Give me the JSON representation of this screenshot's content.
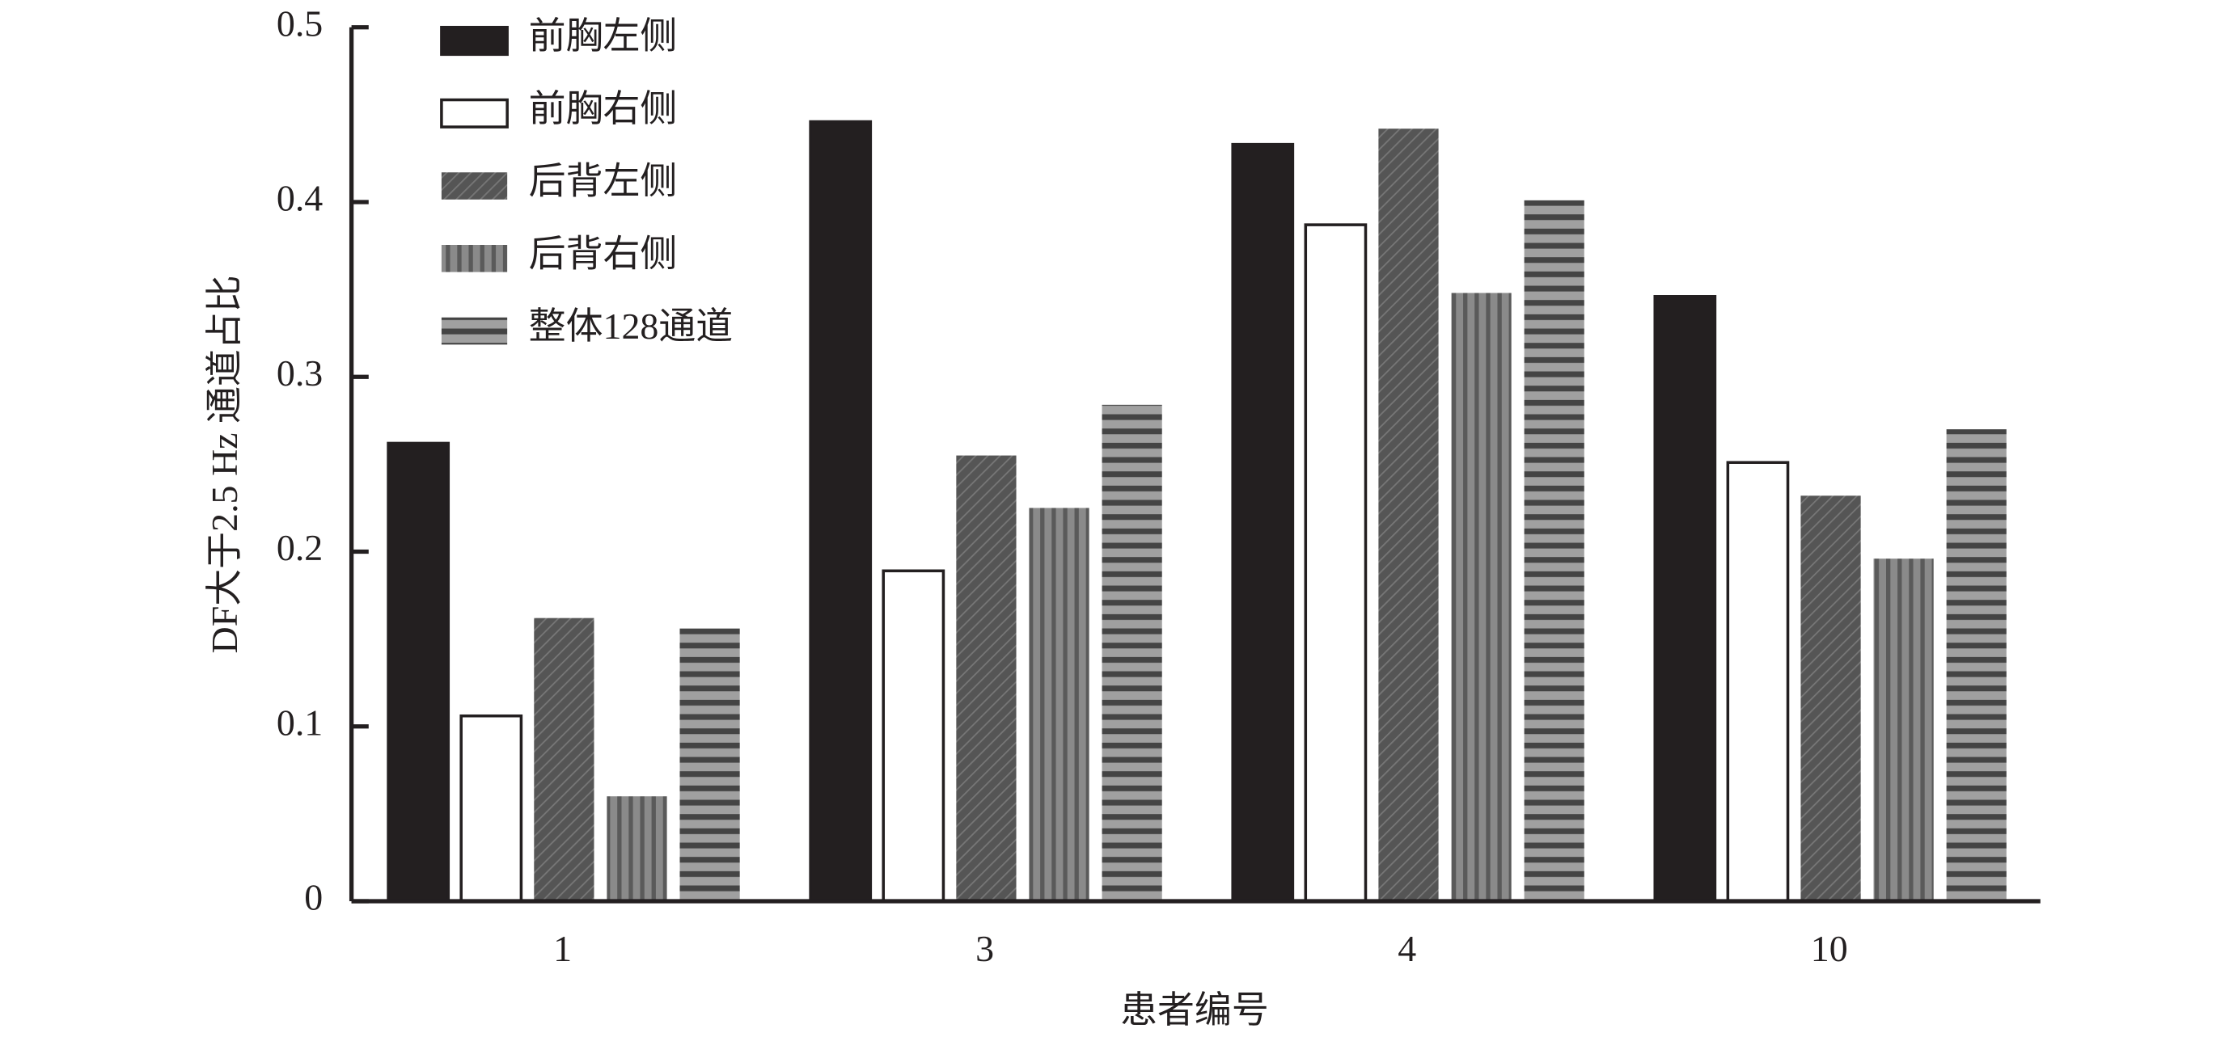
{
  "chart_data": {
    "type": "bar",
    "x_label": "患者编号",
    "y_label": "DF大于2.5 Hz 通道占比",
    "categories": [
      "1",
      "3",
      "4",
      "10"
    ],
    "series": [
      {
        "name": "前胸左侧",
        "color": "#231f20",
        "pattern": "solid",
        "values": [
          0.262,
          0.446,
          0.433,
          0.346
        ]
      },
      {
        "name": "前胸右侧",
        "color": "#ffffff",
        "pattern": "solid",
        "values": [
          0.106,
          0.189,
          0.387,
          0.251
        ]
      },
      {
        "name": "后背左侧",
        "color": "#555555",
        "pattern": "diagonal",
        "values": [
          0.162,
          0.255,
          0.442,
          0.232
        ]
      },
      {
        "name": "后背右侧",
        "color": "#8a8a8a",
        "pattern": "vertical",
        "values": [
          0.06,
          0.225,
          0.348,
          0.196
        ]
      },
      {
        "name": "整体128通道",
        "color": "#9a9a9a",
        "pattern": "horizontal",
        "values": [
          0.156,
          0.284,
          0.401,
          0.27
        ]
      }
    ],
    "ylim": [
      0,
      0.5
    ],
    "yticks": [
      0,
      0.1,
      0.2,
      0.3,
      0.4,
      0.5
    ],
    "grid": false,
    "legend": "top-left"
  }
}
